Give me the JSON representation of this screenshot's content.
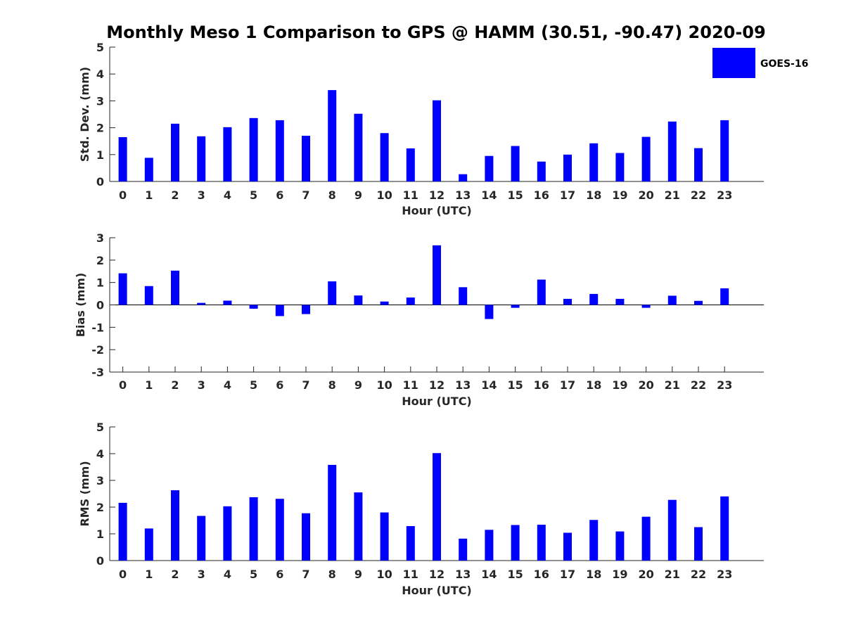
{
  "chart_data": [
    {
      "type": "bar",
      "title": "Monthly Meso 1 Comparison to GPS @ HAMM (30.51, -90.47) 2020-09",
      "xlabel": "Hour (UTC)",
      "ylabel": "Std. Dev. (mm)",
      "categories": [
        "0",
        "1",
        "2",
        "3",
        "4",
        "5",
        "6",
        "7",
        "8",
        "9",
        "10",
        "11",
        "12",
        "13",
        "14",
        "15",
        "16",
        "17",
        "18",
        "19",
        "20",
        "21",
        "22",
        "23"
      ],
      "series": [
        {
          "name": "GOES-16",
          "color": "#0000ff",
          "values": [
            1.65,
            0.88,
            2.15,
            1.68,
            2.02,
            2.36,
            2.28,
            1.7,
            3.4,
            2.52,
            1.8,
            1.23,
            3.02,
            0.27,
            0.95,
            1.32,
            0.74,
            1.0,
            1.42,
            1.06,
            1.66,
            2.23,
            1.24,
            2.28
          ]
        }
      ],
      "ylim": [
        0,
        5
      ],
      "yticks": [
        0,
        1,
        2,
        3,
        4,
        5
      ],
      "legend": {
        "position": "top-right",
        "entries": [
          "GOES-16"
        ]
      }
    },
    {
      "type": "bar",
      "xlabel": "Hour (UTC)",
      "ylabel": "Bias (mm)",
      "categories": [
        "0",
        "1",
        "2",
        "3",
        "4",
        "5",
        "6",
        "7",
        "8",
        "9",
        "10",
        "11",
        "12",
        "13",
        "14",
        "15",
        "16",
        "17",
        "18",
        "19",
        "20",
        "21",
        "22",
        "23"
      ],
      "series": [
        {
          "name": "GOES-16",
          "color": "#0000ff",
          "values": [
            1.41,
            0.84,
            1.53,
            0.09,
            0.19,
            -0.17,
            -0.5,
            -0.41,
            1.05,
            0.42,
            0.15,
            0.33,
            2.66,
            0.79,
            -0.63,
            -0.13,
            1.13,
            0.27,
            0.49,
            0.27,
            -0.13,
            0.41,
            0.18,
            0.74
          ]
        }
      ],
      "ylim": [
        -3,
        3
      ],
      "yticks": [
        -3,
        -2,
        -1,
        0,
        1,
        2,
        3
      ]
    },
    {
      "type": "bar",
      "xlabel": "Hour (UTC)",
      "ylabel": "RMS (mm)",
      "categories": [
        "0",
        "1",
        "2",
        "3",
        "4",
        "5",
        "6",
        "7",
        "8",
        "9",
        "10",
        "11",
        "12",
        "13",
        "14",
        "15",
        "16",
        "17",
        "18",
        "19",
        "20",
        "21",
        "22",
        "23"
      ],
      "series": [
        {
          "name": "GOES-16",
          "color": "#0000ff",
          "values": [
            2.16,
            1.2,
            2.63,
            1.67,
            2.03,
            2.37,
            2.31,
            1.77,
            3.58,
            2.55,
            1.8,
            1.29,
            4.02,
            0.82,
            1.15,
            1.33,
            1.34,
            1.04,
            1.52,
            1.09,
            1.64,
            2.27,
            1.25,
            2.4
          ]
        }
      ],
      "ylim": [
        0,
        5
      ],
      "yticks": [
        0,
        1,
        2,
        3,
        4,
        5
      ]
    }
  ]
}
